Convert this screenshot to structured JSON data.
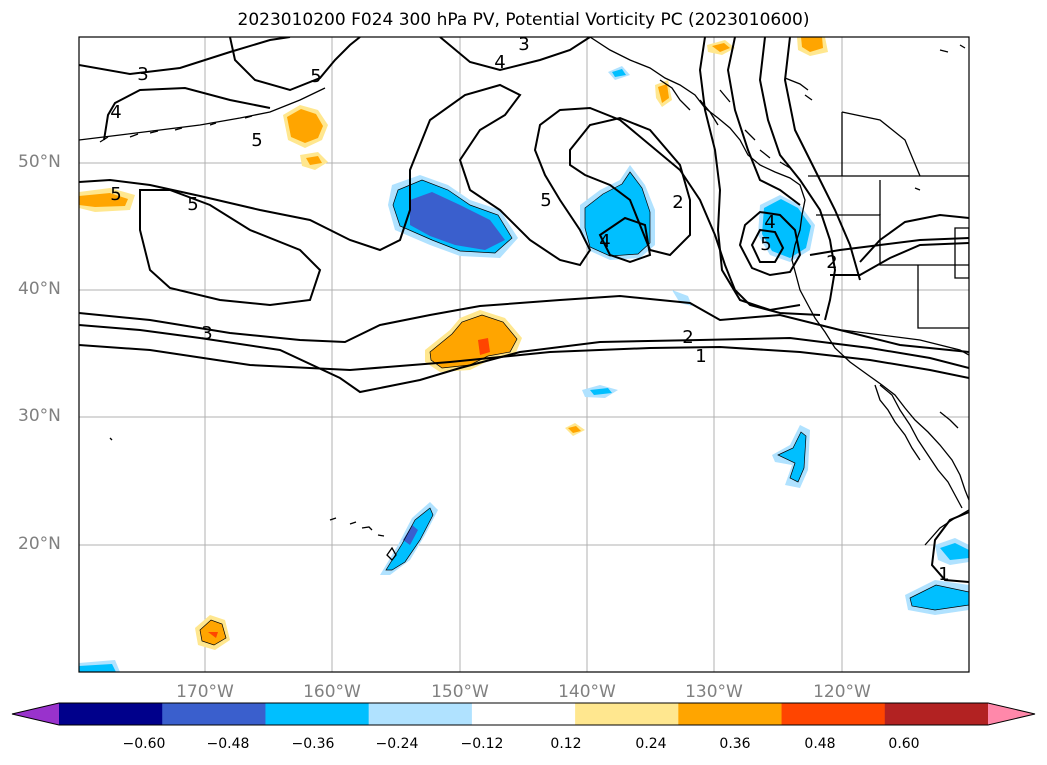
{
  "title": "2023010200 F024 300 hPa PV, Potential Vorticity PC (2023010600)",
  "lat_labels": [
    "50°N",
    "40°N",
    "30°N",
    "20°N"
  ],
  "lon_labels": [
    "170°W",
    "160°W",
    "150°W",
    "140°W",
    "130°W",
    "120°W"
  ],
  "colorbar": {
    "ticks": [
      "−0.60",
      "−0.48",
      "−0.36",
      "−0.24",
      "−0.12",
      "0.12",
      "0.24",
      "0.36",
      "0.48",
      "0.60"
    ],
    "colors": [
      "#9932cc",
      "#00008b",
      "#3a5fcd",
      "#00bfff",
      "#b0e2ff",
      "#ffffff",
      "#ffe78f",
      "#ffa500",
      "#ff4500",
      "#b22222",
      "#ff88aa"
    ]
  },
  "contour_labels": [
    "3",
    "3",
    "4",
    "5",
    "4",
    "5",
    "5",
    "5",
    "3",
    "2",
    "1",
    "5",
    "4",
    "2",
    "4",
    "5",
    "2",
    "1"
  ]
}
